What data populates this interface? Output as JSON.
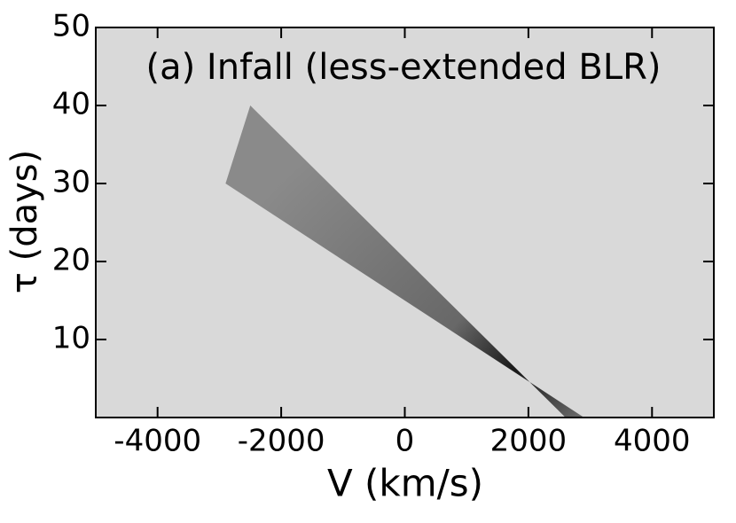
{
  "chart_data": {
    "type": "polygon",
    "title": "(a) Infall (less-extended BLR)",
    "xlabel": "V (km/s)",
    "ylabel": "τ (days)",
    "xlim": [
      -5000,
      5000
    ],
    "ylim": [
      0,
      50
    ],
    "xticks": [
      -4000,
      -2000,
      0,
      2000,
      4000
    ],
    "yticks": [
      10,
      20,
      30,
      40,
      50
    ],
    "background": "#d9d9d9",
    "shape": {
      "color": "#8a8a8a",
      "x": [
        -2500,
        2600,
        2900,
        -2900
      ],
      "y": [
        40,
        0,
        0,
        30
      ]
    }
  }
}
